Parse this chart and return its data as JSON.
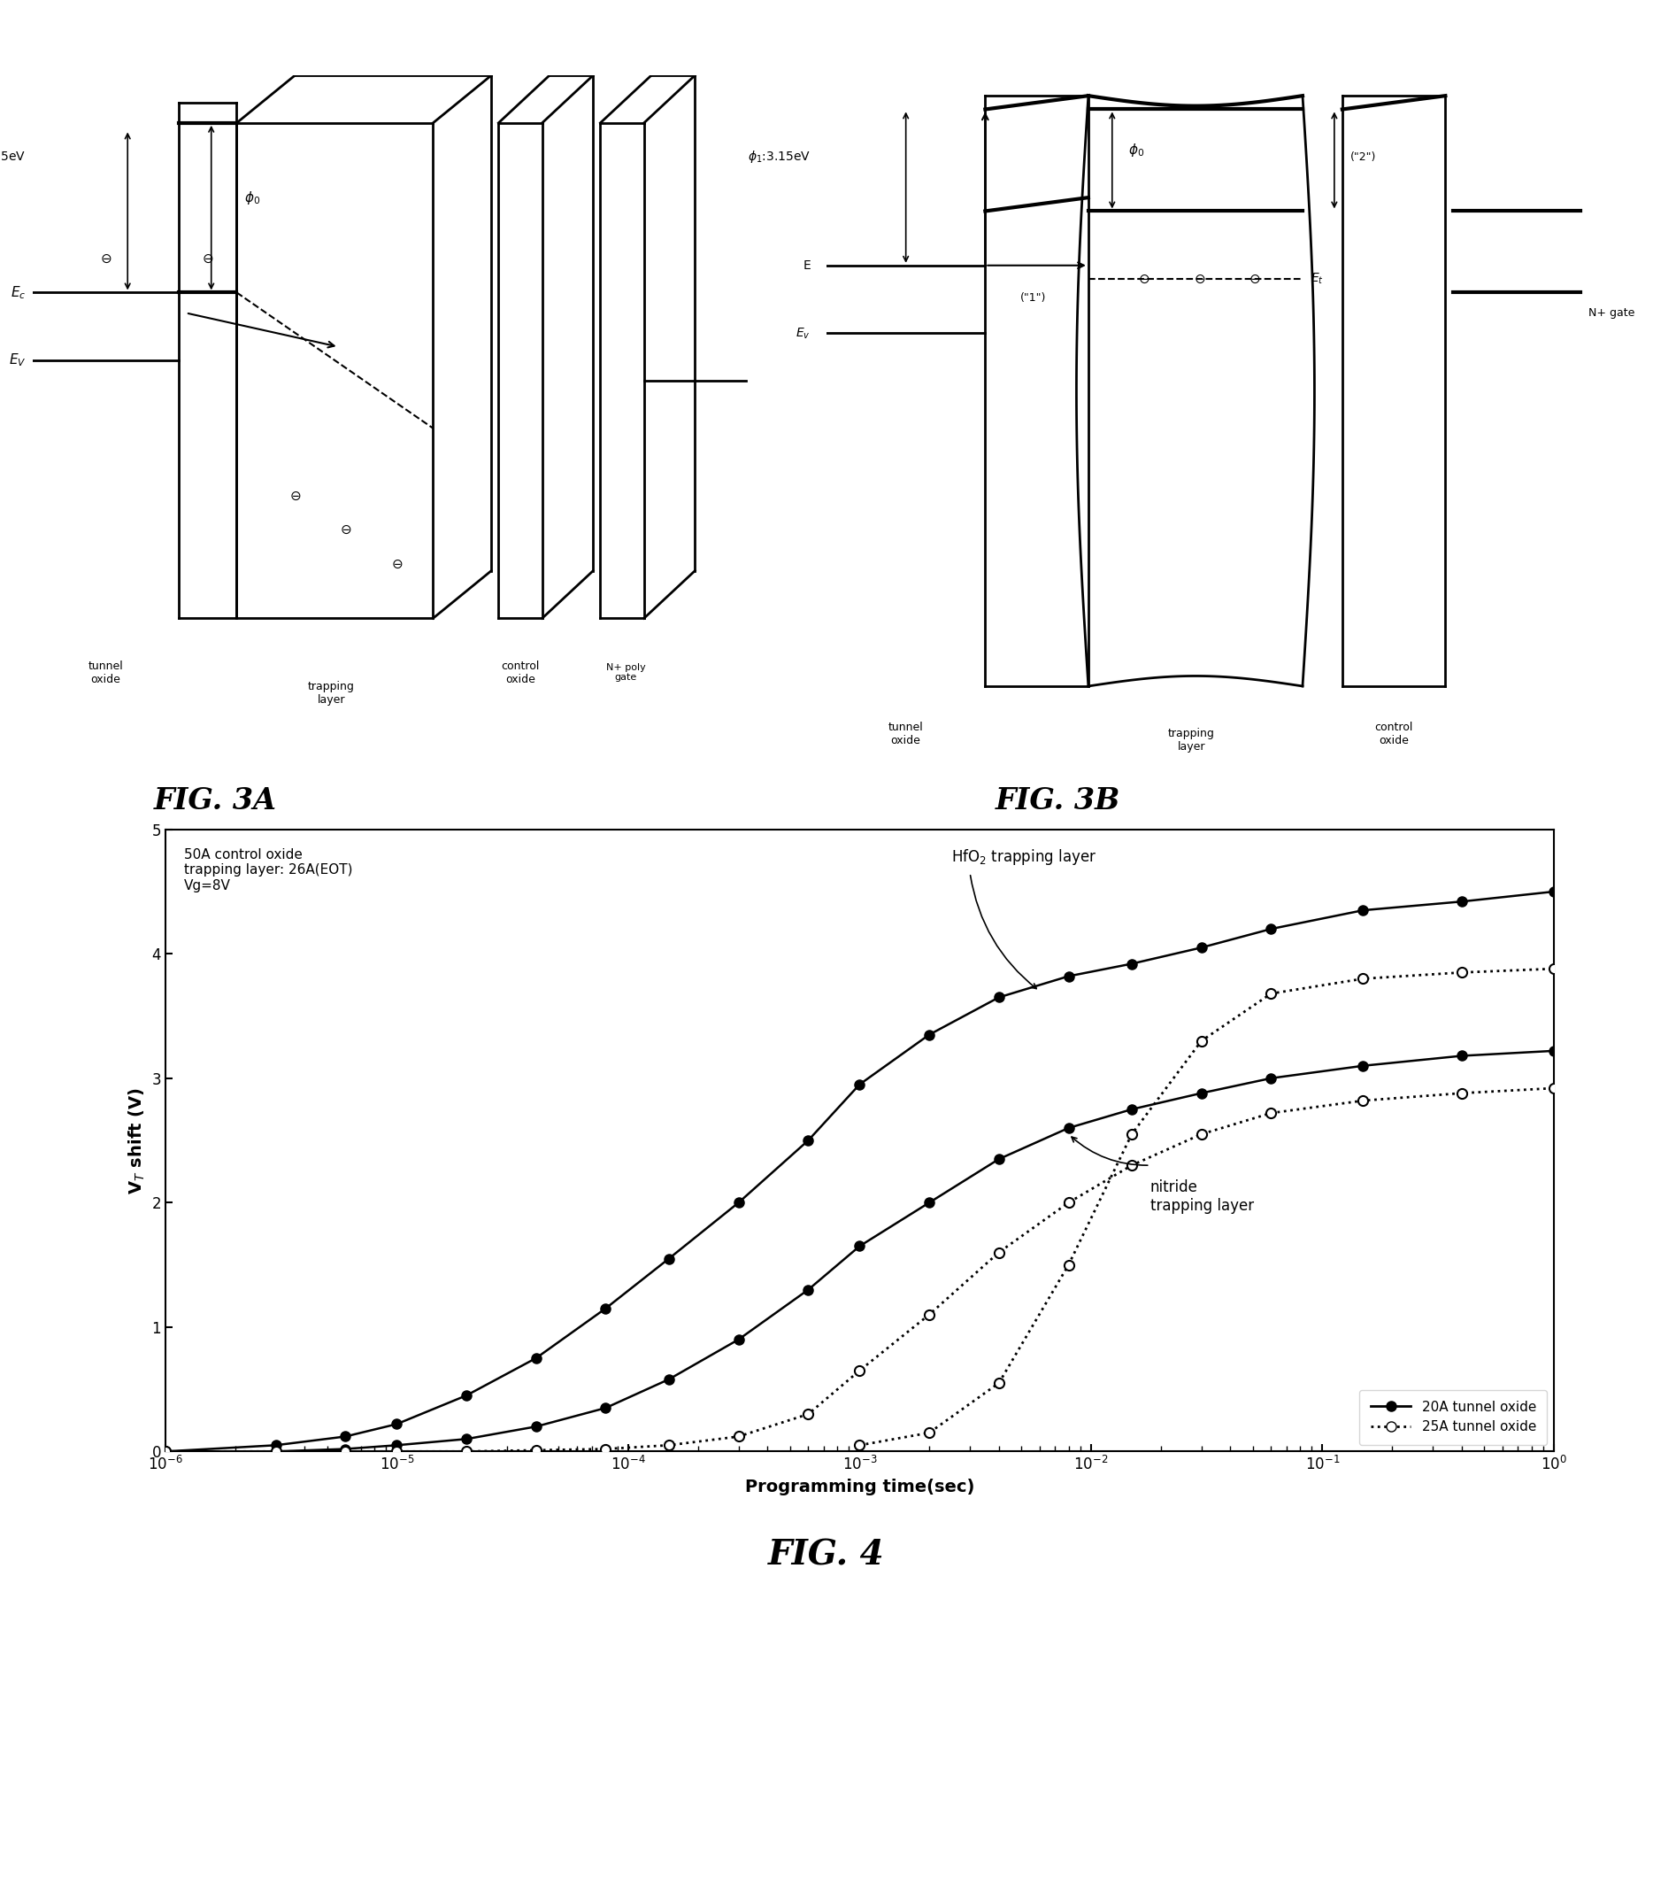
{
  "fig_width": 18.68,
  "fig_height": 21.29,
  "bg_color": "#ffffff",
  "hfo2_20A_x": [
    1e-06,
    3e-06,
    6e-06,
    1e-05,
    2e-05,
    4e-05,
    8e-05,
    0.00015,
    0.0003,
    0.0006,
    0.001,
    0.002,
    0.004,
    0.008,
    0.015,
    0.03,
    0.06,
    0.15,
    0.4,
    1.0
  ],
  "hfo2_20A_y": [
    0.0,
    0.05,
    0.12,
    0.22,
    0.45,
    0.75,
    1.15,
    1.55,
    2.0,
    2.5,
    2.95,
    3.35,
    3.65,
    3.82,
    3.92,
    4.05,
    4.2,
    4.35,
    4.42,
    4.5
  ],
  "hfo2_25A_x": [
    0.001,
    0.002,
    0.004,
    0.008,
    0.015,
    0.03,
    0.06,
    0.15,
    0.4,
    1.0
  ],
  "hfo2_25A_y": [
    0.05,
    0.15,
    0.55,
    1.5,
    2.55,
    3.3,
    3.68,
    3.8,
    3.85,
    3.88
  ],
  "nitride_20A_x": [
    1e-06,
    3e-06,
    6e-06,
    1e-05,
    2e-05,
    4e-05,
    8e-05,
    0.00015,
    0.0003,
    0.0006,
    0.001,
    0.002,
    0.004,
    0.008,
    0.015,
    0.03,
    0.06,
    0.15,
    0.4,
    1.0
  ],
  "nitride_20A_y": [
    0.0,
    0.0,
    0.02,
    0.05,
    0.1,
    0.2,
    0.35,
    0.58,
    0.9,
    1.3,
    1.65,
    2.0,
    2.35,
    2.6,
    2.75,
    2.88,
    3.0,
    3.1,
    3.18,
    3.22
  ],
  "nitride_25A_x": [
    1e-06,
    3e-06,
    6e-06,
    1e-05,
    2e-05,
    4e-05,
    8e-05,
    0.00015,
    0.0003,
    0.0006,
    0.001,
    0.002,
    0.004,
    0.008,
    0.015,
    0.03,
    0.06,
    0.15,
    0.4,
    1.0
  ],
  "nitride_25A_y": [
    0.0,
    0.0,
    0.0,
    0.0,
    0.0,
    0.01,
    0.02,
    0.05,
    0.12,
    0.3,
    0.65,
    1.1,
    1.6,
    2.0,
    2.3,
    2.55,
    2.72,
    2.82,
    2.88,
    2.92
  ],
  "plot_xlim": [
    1e-06,
    1.0
  ],
  "plot_ylim": [
    0,
    5
  ],
  "xlabel": "Programming time(sec)",
  "ylabel": "V$_T$ shift (V)",
  "yticks": [
    0,
    1,
    2,
    3,
    4,
    5
  ],
  "annotation_text1": "50A control oxide\ntrapping layer: 26A(EOT)\nVg=8V",
  "annotation_hfo2": "HfO$_2$ trapping layer",
  "annotation_nitride": "nitride\ntrapping layer",
  "legend_20A": "20A tunnel oxide",
  "legend_25A": "25A tunnel oxide",
  "fig3a_label": "FIG. 3A",
  "fig3b_label": "FIG. 3B",
  "fig4_label": "FIG. 4"
}
